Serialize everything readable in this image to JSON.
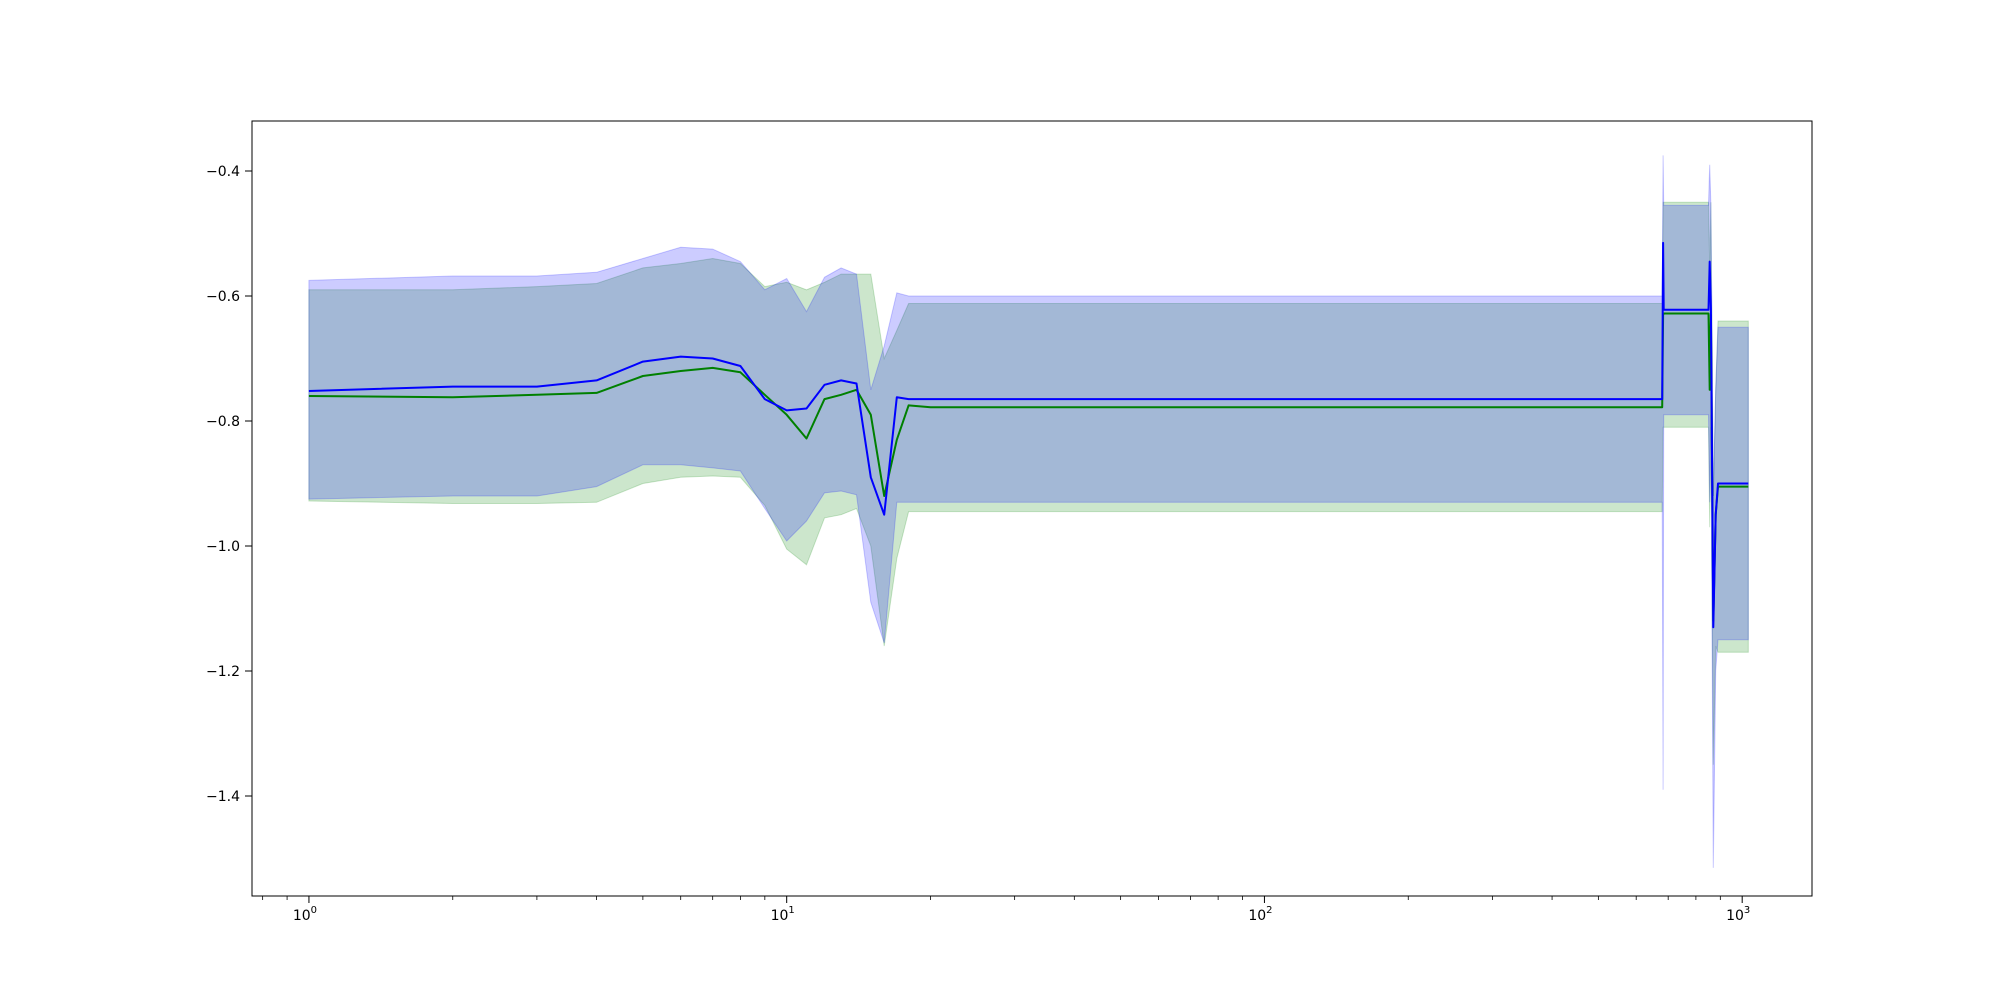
{
  "chart_data": {
    "type": "line",
    "title": "",
    "xlabel": "",
    "ylabel": "",
    "xscale": "log",
    "xlim": [
      0.76,
      1400
    ],
    "ylim": [
      -1.56,
      -0.32
    ],
    "grid": false,
    "x_ticks": [
      {
        "value": 1,
        "label": "10",
        "exp": "0"
      },
      {
        "value": 10,
        "label": "10",
        "exp": "1"
      },
      {
        "value": 100,
        "label": "10",
        "exp": "2"
      },
      {
        "value": 1000,
        "label": "10",
        "exp": "3"
      }
    ],
    "y_ticks": [
      {
        "value": -0.4,
        "label": "−0.4"
      },
      {
        "value": -0.6,
        "label": "−0.6"
      },
      {
        "value": -0.8,
        "label": "−0.8"
      },
      {
        "value": -1.0,
        "label": "−1.0"
      },
      {
        "value": -1.2,
        "label": "−1.2"
      },
      {
        "value": -1.4,
        "label": "−1.4"
      }
    ],
    "series": [
      {
        "color": "#008000",
        "band_color": "#008000",
        "band_opacity": 0.2,
        "x": [
          1,
          2,
          3,
          4,
          5,
          6,
          7,
          8,
          9,
          10,
          11,
          12,
          13,
          14,
          15,
          16,
          17,
          18,
          20,
          30,
          50,
          100,
          200,
          500,
          680,
          683,
          685,
          690,
          700,
          800,
          850,
          855,
          860,
          870,
          880,
          890,
          900,
          950,
          1000,
          1030
        ],
        "y": [
          -0.76,
          -0.762,
          -0.758,
          -0.755,
          -0.728,
          -0.72,
          -0.715,
          -0.722,
          -0.758,
          -0.79,
          -0.828,
          -0.765,
          -0.758,
          -0.75,
          -0.79,
          -0.92,
          -0.83,
          -0.775,
          -0.778,
          -0.778,
          -0.778,
          -0.778,
          -0.778,
          -0.778,
          -0.778,
          -0.63,
          -0.628,
          -0.628,
          -0.628,
          -0.628,
          -0.628,
          -0.75,
          -0.63,
          -1.12,
          -0.95,
          -0.905,
          -0.905,
          -0.905,
          -0.905,
          -0.905
        ],
        "upper": [
          -0.59,
          -0.59,
          -0.585,
          -0.58,
          -0.555,
          -0.548,
          -0.54,
          -0.548,
          -0.585,
          -0.578,
          -0.59,
          -0.578,
          -0.565,
          -0.565,
          -0.565,
          -0.7,
          -0.655,
          -0.612,
          -0.612,
          -0.612,
          -0.612,
          -0.612,
          -0.612,
          -0.612,
          -0.612,
          -0.45,
          -0.45,
          -0.45,
          -0.45,
          -0.45,
          -0.45,
          -0.55,
          -0.45,
          -0.92,
          -0.75,
          -0.64,
          -0.64,
          -0.64,
          -0.64,
          -0.64
        ],
        "lower": [
          -0.928,
          -0.932,
          -0.932,
          -0.93,
          -0.9,
          -0.89,
          -0.888,
          -0.89,
          -0.935,
          -1.005,
          -1.03,
          -0.955,
          -0.95,
          -0.94,
          -1.0,
          -1.16,
          -1.02,
          -0.945,
          -0.945,
          -0.945,
          -0.945,
          -0.945,
          -0.945,
          -0.945,
          -0.945,
          -0.81,
          -0.81,
          -0.81,
          -0.81,
          -0.81,
          -0.81,
          -0.97,
          -0.81,
          -1.35,
          -1.16,
          -1.17,
          -1.17,
          -1.17,
          -1.17,
          -1.17
        ]
      },
      {
        "color": "#0000ff",
        "band_color": "#0000ff",
        "band_opacity": 0.2,
        "x": [
          1,
          2,
          3,
          4,
          5,
          6,
          7,
          8,
          9,
          10,
          11,
          12,
          13,
          14,
          15,
          16,
          17,
          18,
          20,
          30,
          50,
          100,
          200,
          500,
          680,
          683,
          685,
          690,
          700,
          800,
          850,
          855,
          860,
          870,
          880,
          890,
          900,
          950,
          1000,
          1030
        ],
        "y": [
          -0.752,
          -0.745,
          -0.745,
          -0.735,
          -0.705,
          -0.697,
          -0.7,
          -0.712,
          -0.765,
          -0.783,
          -0.78,
          -0.742,
          -0.735,
          -0.74,
          -0.89,
          -0.95,
          -0.762,
          -0.765,
          -0.765,
          -0.765,
          -0.765,
          -0.765,
          -0.765,
          -0.765,
          -0.765,
          -0.515,
          -0.622,
          -0.622,
          -0.622,
          -0.622,
          -0.622,
          -0.545,
          -0.62,
          -1.13,
          -0.95,
          -0.9,
          -0.9,
          -0.9,
          -0.9,
          -0.9
        ],
        "upper": [
          -0.575,
          -0.568,
          -0.568,
          -0.562,
          -0.54,
          -0.522,
          -0.525,
          -0.545,
          -0.59,
          -0.572,
          -0.625,
          -0.57,
          -0.555,
          -0.565,
          -0.75,
          -0.68,
          -0.595,
          -0.6,
          -0.6,
          -0.6,
          -0.6,
          -0.6,
          -0.6,
          -0.6,
          -0.6,
          -0.375,
          -0.455,
          -0.455,
          -0.455,
          -0.455,
          -0.455,
          -0.39,
          -0.455,
          -0.92,
          -0.75,
          -0.65,
          -0.65,
          -0.65,
          -0.65,
          -0.65
        ],
        "lower": [
          -0.925,
          -0.92,
          -0.92,
          -0.905,
          -0.87,
          -0.87,
          -0.875,
          -0.88,
          -0.94,
          -0.992,
          -0.96,
          -0.915,
          -0.912,
          -0.918,
          -1.09,
          -1.155,
          -0.93,
          -0.93,
          -0.93,
          -0.93,
          -0.93,
          -0.93,
          -0.93,
          -0.93,
          -0.93,
          -1.39,
          -0.79,
          -0.79,
          -0.79,
          -0.79,
          -0.79,
          -0.93,
          -0.79,
          -1.515,
          -1.2,
          -1.15,
          -1.15,
          -1.15,
          -1.15,
          -1.15
        ]
      }
    ]
  }
}
